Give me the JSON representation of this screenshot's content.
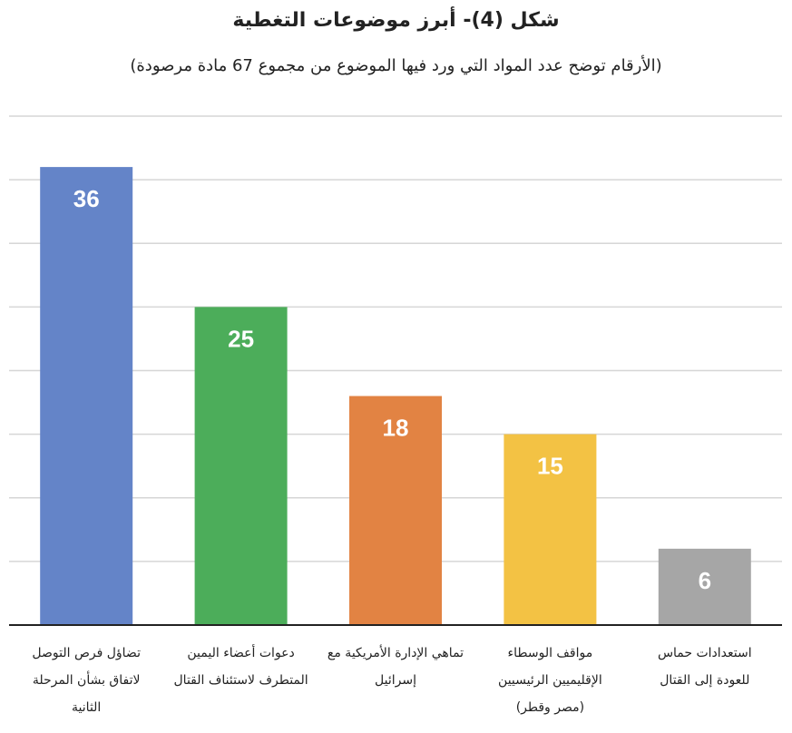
{
  "chart_data": {
    "type": "bar",
    "title": "شكل (4)- أبرز موضوعات التغطية",
    "subtitle": "(الأرقام توضح عدد المواد التي ورد فيها الموضوع من مجموع 67 مادة مرصودة)",
    "categories": [
      "تضاؤل فرص التوصل لاتفاق بشأن المرحلة الثانية",
      "دعوات أعضاء اليمين المتطرف لاستئناف القتال",
      "تماهي الإدارة الأمريكية مع إسرائيل",
      "مواقف الوسطاء الإقليميين الرئيسيين (مصر وقطر)",
      "استعدادات حماس للعودة إلى القتال"
    ],
    "category_lines": [
      [
        "تضاؤل فرص التوصل",
        "لاتفاق بشأن المرحلة",
        "الثانية"
      ],
      [
        "دعوات أعضاء اليمين",
        "المتطرف لاستئناف القتال"
      ],
      [
        "تماهي الإدارة الأمريكية مع",
        "إسرائيل"
      ],
      [
        "مواقف الوسطاء",
        "الإقليميين الرئيسيين",
        "(مصر وقطر)"
      ],
      [
        "استعدادات حماس",
        "للعودة إلى القتال"
      ]
    ],
    "values": [
      36,
      25,
      18,
      15,
      6
    ],
    "colors": [
      "#6484c8",
      "#4cad5a",
      "#e28343",
      "#f3c244",
      "#a6a6a6"
    ],
    "label_colors": [
      "#ffffff",
      "#ffffff",
      "#ffffff",
      "#ffffff",
      "#ffffff"
    ],
    "ylim": [
      0,
      40
    ],
    "grid": true,
    "legend": "none"
  }
}
